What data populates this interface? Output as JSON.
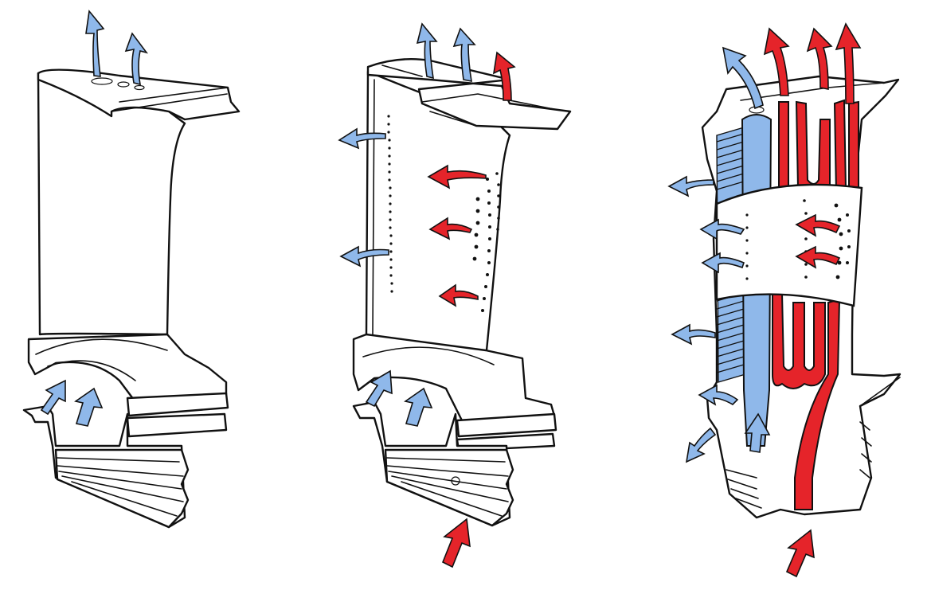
{
  "figure": {
    "panels": [
      {
        "id": "blade-left",
        "cooling_inlets": 2,
        "cooling_outlets": 2
      },
      {
        "id": "blade-middle",
        "cooling_inlets": 3,
        "cooling_outlets": 8
      },
      {
        "id": "blade-right",
        "cooling_inlets": 2,
        "cooling_outlets": 9
      }
    ],
    "colors": {
      "cool_air": "#8fb8ea",
      "hot_air": "#e5242a",
      "outline": "#111111",
      "blade_fill": "#ffffff"
    },
    "icons": {
      "cool_arrow": "blue-arrow-icon",
      "hot_arrow": "red-arrow-icon"
    }
  }
}
